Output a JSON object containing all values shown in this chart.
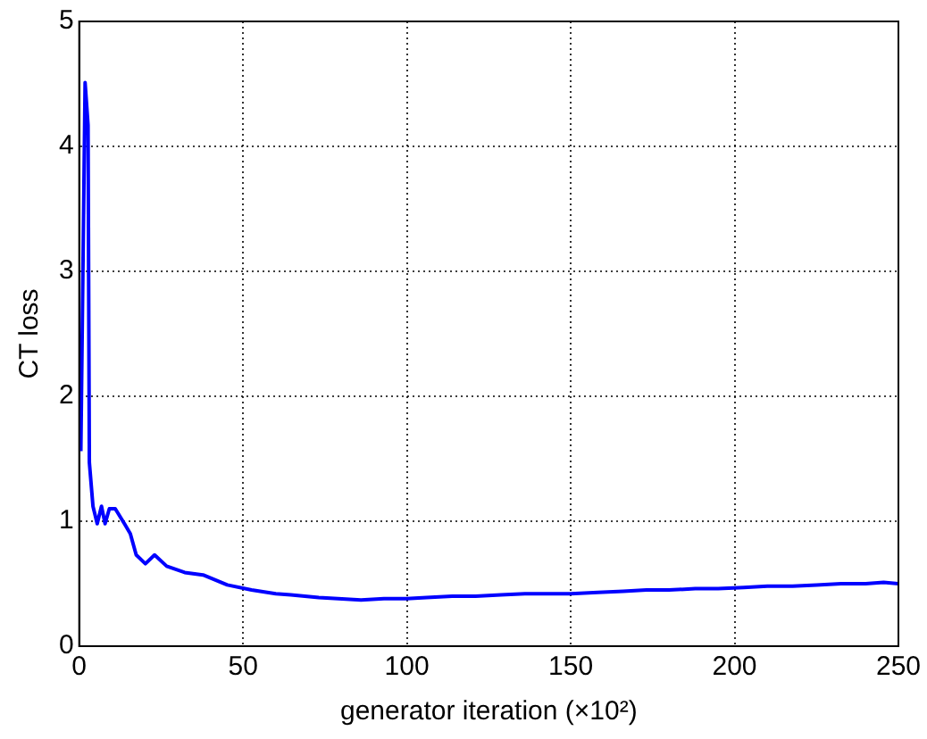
{
  "chart_data": {
    "type": "line",
    "xlabel": "generator iteration (×10²)",
    "ylabel": "CT loss",
    "series": [
      {
        "color": "#0000ff",
        "x": [
          0.5,
          1.8,
          2.7,
          3.1,
          4.2,
          5.5,
          6.8,
          7.9,
          9.2,
          11,
          13.8,
          15.6,
          17.4,
          20.2,
          23,
          26.7,
          32.2,
          37.8,
          45.2,
          52.6,
          60,
          64.6,
          73.1,
          79,
          86,
          93,
          99.9,
          106,
          113.8,
          121,
          128.7,
          136,
          143.5,
          150,
          158.3,
          166,
          173.1,
          180,
          188,
          195,
          202.8,
          210,
          217.7,
          225,
          232.5,
          240,
          245.5,
          250
        ],
        "values": [
          1.56,
          4.51,
          4.17,
          1.47,
          1.12,
          0.98,
          1.12,
          0.98,
          1.1,
          1.1,
          0.98,
          0.9,
          0.73,
          0.66,
          0.73,
          0.64,
          0.59,
          0.57,
          0.49,
          0.45,
          0.42,
          0.41,
          0.39,
          0.38,
          0.37,
          0.38,
          0.38,
          0.39,
          0.4,
          0.4,
          0.41,
          0.42,
          0.42,
          0.42,
          0.43,
          0.44,
          0.45,
          0.45,
          0.46,
          0.46,
          0.47,
          0.48,
          0.48,
          0.49,
          0.5,
          0.5,
          0.51,
          0.5
        ]
      }
    ],
    "xlim": [
      0,
      250
    ],
    "xticks": [
      0,
      50,
      100,
      150,
      200,
      250
    ],
    "ylim": [
      0,
      5
    ],
    "yticks": [
      0,
      1,
      2,
      3,
      4,
      5
    ],
    "grid": true,
    "legend": false,
    "marker": "none",
    "line_style": "solid"
  }
}
